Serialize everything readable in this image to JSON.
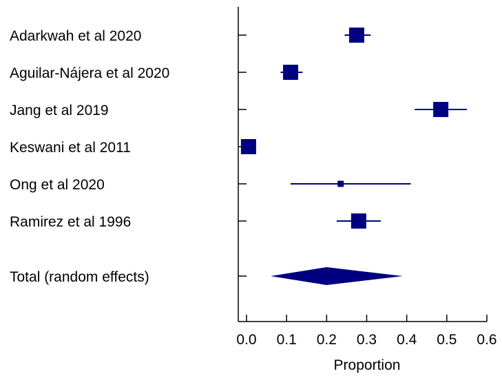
{
  "chart_data": {
    "type": "forest",
    "xlabel": "Proportion",
    "xlim": [
      -0.02,
      0.62
    ],
    "xticks": [
      "0.0",
      "0.1",
      "0.2",
      "0.3",
      "0.4",
      "0.5",
      "0.6"
    ],
    "xtick_values": [
      0.0,
      0.1,
      0.2,
      0.3,
      0.4,
      0.5,
      0.6
    ],
    "marker_color": "#000080",
    "studies": [
      {
        "label": "Adarkwah et al 2020",
        "estimate": 0.275,
        "ci_low": 0.245,
        "ci_high": 0.31,
        "weight": 1.0
      },
      {
        "label": "Aguilar-Nájera et al 2020",
        "estimate": 0.11,
        "ci_low": 0.085,
        "ci_high": 0.14,
        "weight": 1.0
      },
      {
        "label": "Jang et al 2019",
        "estimate": 0.485,
        "ci_low": 0.42,
        "ci_high": 0.55,
        "weight": 1.0
      },
      {
        "label": "Keswani et al 2011",
        "estimate": 0.005,
        "ci_low": 0.0,
        "ci_high": 0.015,
        "weight": 1.0
      },
      {
        "label": "Ong et al 2020",
        "estimate": 0.235,
        "ci_low": 0.11,
        "ci_high": 0.41,
        "weight": 0.4
      },
      {
        "label": "Ramirez et al 1996",
        "estimate": 0.28,
        "ci_low": 0.225,
        "ci_high": 0.335,
        "weight": 1.0
      }
    ],
    "total": {
      "label": "Total (random effects)",
      "estimate": 0.2,
      "ci_low": 0.06,
      "ci_high": 0.39
    }
  }
}
